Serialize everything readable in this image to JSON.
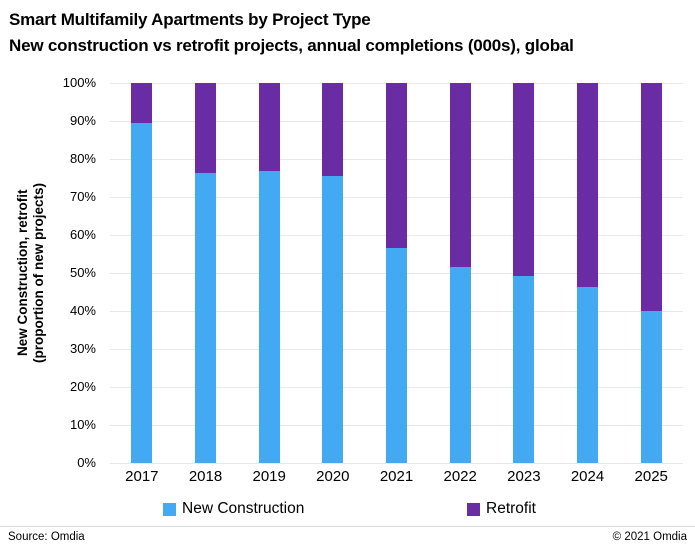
{
  "header": {
    "title": "Smart Multifamily Apartments by Project Type",
    "subtitle": "New construction vs retrofit projects, annual completions (000s), global"
  },
  "chart_data": {
    "type": "bar",
    "stacked": true,
    "title": "Smart Multifamily Apartments by Project Type",
    "subtitle": "New construction vs retrofit projects, annual completions (000s), global",
    "categories": [
      "2017",
      "2018",
      "2019",
      "2020",
      "2021",
      "2022",
      "2023",
      "2024",
      "2025"
    ],
    "series": [
      {
        "name": "New Construction",
        "color": "#44a9f3",
        "values": [
          89.5,
          76.3,
          76.9,
          75.5,
          56.5,
          51.7,
          49.2,
          46.3,
          40.0
        ]
      },
      {
        "name": "Retrofit",
        "color": "#692ca5",
        "values": [
          10.5,
          23.7,
          23.1,
          24.5,
          43.5,
          48.3,
          50.8,
          53.7,
          60.0
        ]
      }
    ],
    "ylabel_line1": "New Construction, retrofit",
    "ylabel_line2": "(proportion of new projects)",
    "xlabel": "",
    "yticks": [
      "100%",
      "90%",
      "80%",
      "70%",
      "60%",
      "50%",
      "40%",
      "30%",
      "20%",
      "10%",
      "0%"
    ],
    "ylim": [
      0,
      100
    ],
    "grid": "horizontal",
    "gridline_color": "#e8e8e8",
    "legend_position": "bottom"
  },
  "legend": {
    "items": [
      {
        "label": "New Construction",
        "color": "#44a9f3"
      },
      {
        "label": "Retrofit",
        "color": "#692ca5"
      }
    ]
  },
  "footer": {
    "source": "Source: Omdia",
    "copyright": "© 2021 Omdia"
  }
}
